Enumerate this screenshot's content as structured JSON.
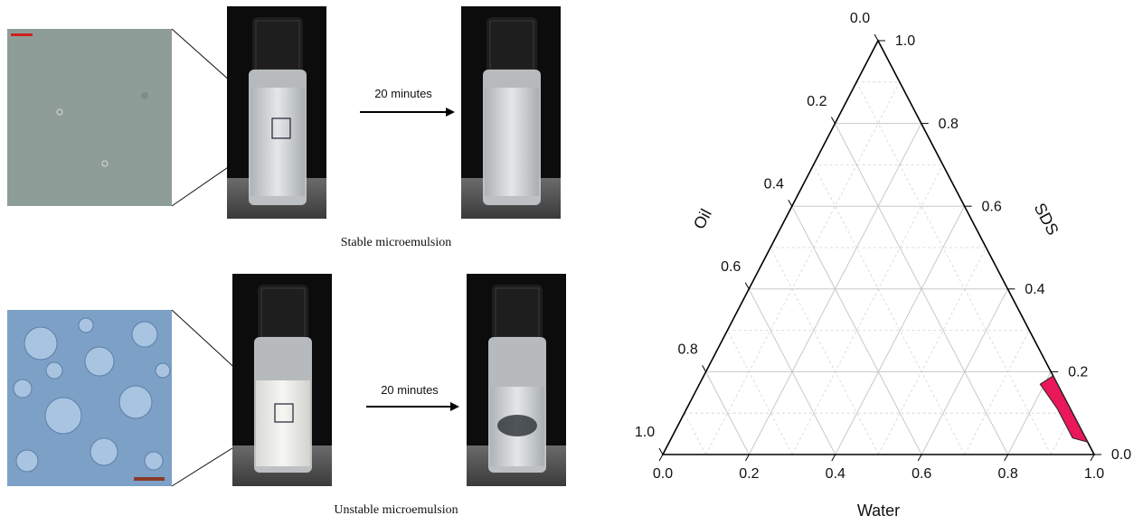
{
  "figure": {
    "panels": [
      {
        "arrow_label": "20 minutes",
        "caption": "Stable microemulsion"
      },
      {
        "arrow_label": "20 minutes",
        "caption": "Unstable microemulsion"
      }
    ]
  },
  "chart_data": {
    "type": "ternary",
    "axes": {
      "water": {
        "label": "Water",
        "ticks": [
          {
            "value": 0,
            "label": "0.0"
          },
          0.2,
          0.4,
          0.6,
          0.8,
          {
            "value": 1,
            "label": "1.0"
          }
        ]
      },
      "sds": {
        "label": "SDS",
        "ticks": [
          {
            "value": 0,
            "label": "0.0"
          },
          0.2,
          0.4,
          0.6,
          0.8,
          {
            "value": 1,
            "label": "1.0"
          }
        ]
      },
      "oil": {
        "label": "Oil",
        "ticks": [
          {
            "value": 0,
            "label": "0.0"
          },
          0.2,
          0.4,
          0.6,
          0.8,
          {
            "value": 1,
            "label": "1.0"
          }
        ]
      }
    },
    "minor_ticks": [
      0.1,
      0.3,
      0.5,
      0.7,
      0.9
    ],
    "grid": true,
    "region": {
      "color": "#e8185a",
      "water": [
        0.81,
        0.79,
        0.86,
        0.93,
        0.97
      ],
      "sds": [
        0.19,
        0.17,
        0.11,
        0.04,
        0.03
      ],
      "oil": [
        0.0,
        0.04,
        0.03,
        0.03,
        0.0
      ]
    }
  }
}
